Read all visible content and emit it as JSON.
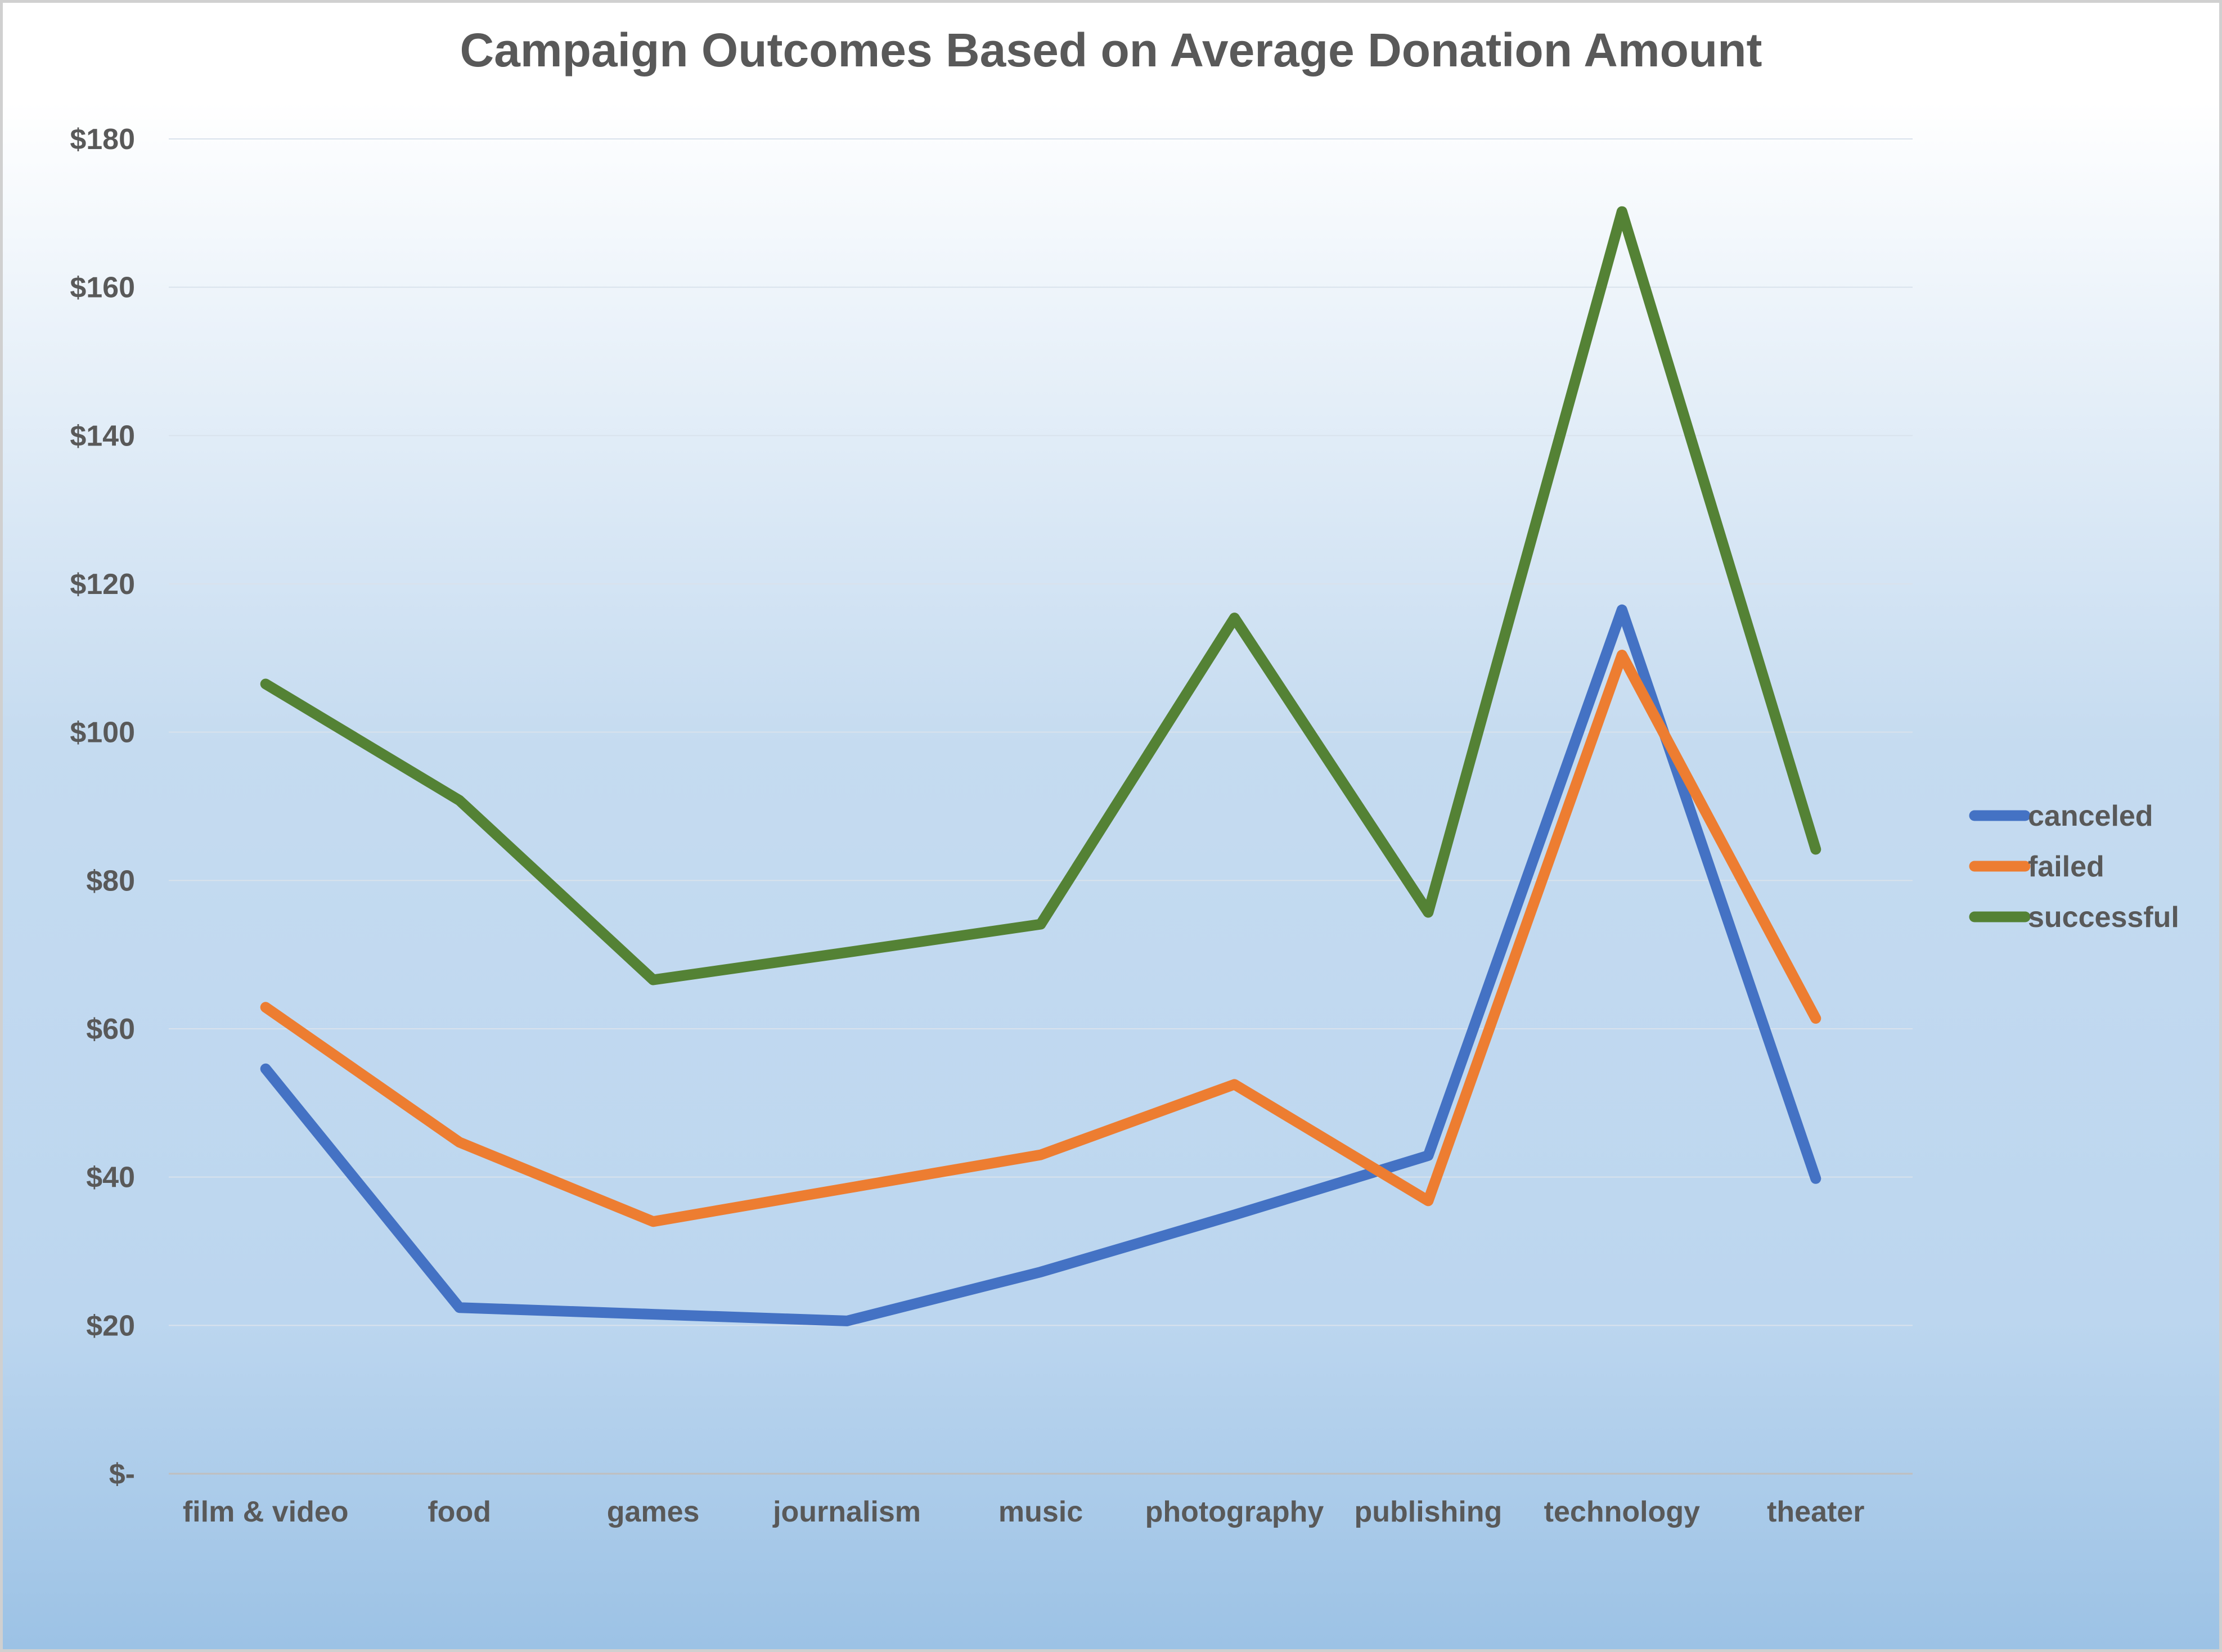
{
  "chart_data": {
    "type": "line",
    "title": "Campaign Outcomes Based on Average Donation Amount",
    "xlabel": "",
    "ylabel": "",
    "categories": [
      "film & video",
      "food",
      "games",
      "journalism",
      "music",
      "photography",
      "publishing",
      "technology",
      "theater"
    ],
    "ylim": [
      0,
      180
    ],
    "yticks": [
      0,
      20,
      40,
      60,
      80,
      100,
      120,
      140,
      160,
      180
    ],
    "ytick_labels": [
      "$-",
      "$20",
      "$40",
      "$60",
      "$80",
      "$100",
      "$120",
      "$140",
      "$160",
      "$180"
    ],
    "grid": true,
    "legend_position": "right",
    "series": [
      {
        "name": "canceled",
        "color": "#4472c4",
        "values": [
          54.6,
          22.4,
          21.5,
          20.6,
          27.2,
          34.9,
          42.9,
          116.5,
          39.8
        ]
      },
      {
        "name": "failed",
        "color": "#ed7d31",
        "values": [
          62.9,
          44.7,
          34.0,
          38.5,
          43.0,
          52.5,
          36.8,
          110.4,
          61.4
        ]
      },
      {
        "name": "successful",
        "color": "#548235",
        "values": [
          106.5,
          90.8,
          66.6,
          70.3,
          74.1,
          115.4,
          75.7,
          170.2,
          84.2
        ]
      }
    ]
  }
}
